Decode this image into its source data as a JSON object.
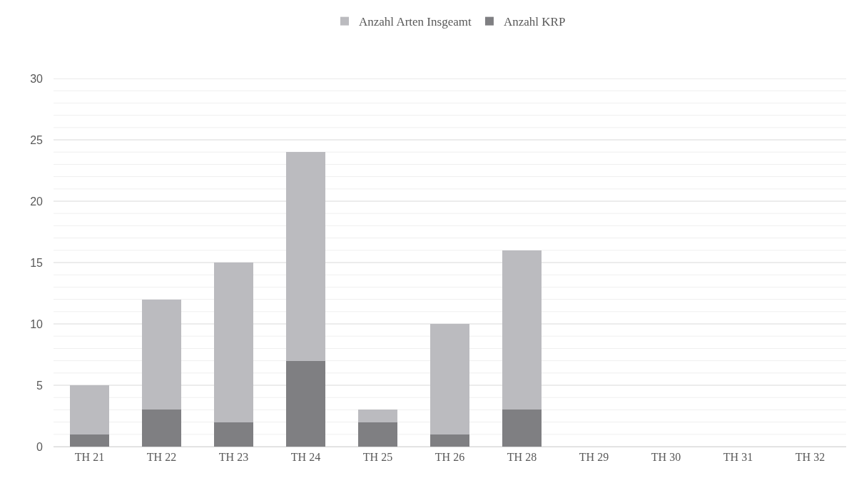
{
  "chart_data": {
    "type": "bar",
    "stacked": true,
    "categories": [
      "TH 21",
      "TH 22",
      "TH 23",
      "TH 24",
      "TH 25",
      "TH 26",
      "TH 28",
      "TH 29",
      "TH 30",
      "TH 31",
      "TH 32"
    ],
    "series": [
      {
        "name": "Anzahl KRP",
        "color": "#7f7f82",
        "values": [
          1,
          3,
          2,
          7,
          2,
          1,
          3,
          null,
          null,
          null,
          null
        ]
      },
      {
        "name": "Anzahl Arten Insgeamt",
        "color": "#bbbbbf",
        "values": [
          4,
          9,
          13,
          17,
          1,
          9,
          13,
          null,
          null,
          null,
          null
        ]
      }
    ],
    "ylim": [
      0,
      30
    ],
    "yticks": [
      0,
      {
        "value": 1,
        "label": null
      },
      {
        "value": 2,
        "label": null
      },
      {
        "value": 3,
        "label": null
      },
      {
        "value": 4,
        "label": null
      },
      5,
      {
        "value": 6,
        "label": null
      },
      {
        "value": 7,
        "label": null
      },
      {
        "value": 8,
        "label": null
      },
      {
        "value": 9,
        "label": null
      },
      10,
      {
        "value": 11,
        "label": null
      },
      {
        "value": 12,
        "label": null
      },
      {
        "value": 13,
        "label": null
      },
      {
        "value": 14,
        "label": null
      },
      15,
      {
        "value": 16,
        "label": null
      },
      {
        "value": 17,
        "label": null
      },
      {
        "value": 18,
        "label": null
      },
      {
        "value": 19,
        "label": null
      },
      20,
      {
        "value": 21,
        "label": null
      },
      {
        "value": 22,
        "label": null
      },
      {
        "value": 23,
        "label": null
      },
      {
        "value": 24,
        "label": null
      },
      25,
      {
        "value": 26,
        "label": null
      },
      {
        "value": 27,
        "label": null
      },
      {
        "value": 28,
        "label": null
      },
      {
        "value": 29,
        "label": null
      },
      30
    ],
    "grid": "y",
    "legend": "top"
  }
}
